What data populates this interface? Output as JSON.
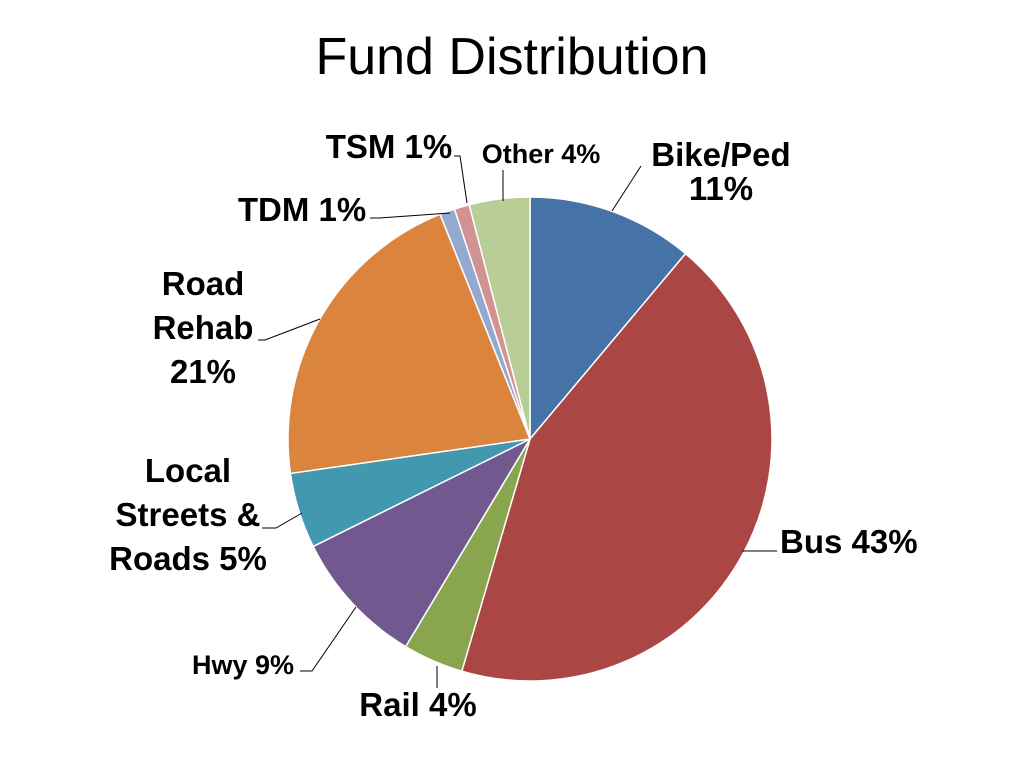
{
  "slide": {
    "title": "Fund Distribution"
  },
  "chart_data": {
    "type": "pie",
    "title": "Fund Distribution",
    "slices": [
      {
        "name": "Bike/Ped",
        "value": 11,
        "color": "#4572A7",
        "label_lines": [
          "Bike/Ped",
          "11%"
        ]
      },
      {
        "name": "Bus",
        "value": 43,
        "color": "#AA4643",
        "label_lines": [
          "Bus 43%"
        ]
      },
      {
        "name": "Rail",
        "value": 4,
        "color": "#89A54E",
        "label_lines": [
          "Rail 4%"
        ]
      },
      {
        "name": "Hwy",
        "value": 9,
        "color": "#71588F",
        "label_lines": [
          "Hwy 9%"
        ]
      },
      {
        "name": "Local Streets & Roads",
        "value": 5,
        "color": "#4198AF",
        "label_lines": [
          "Local",
          "Streets &",
          "Roads 5%"
        ]
      },
      {
        "name": "Road Rehab",
        "value": 21,
        "color": "#DB843D",
        "label_lines": [
          "Road",
          "Rehab",
          "21%"
        ]
      },
      {
        "name": "TDM",
        "value": 1,
        "color": "#93A9CF",
        "label_lines": [
          "TDM 1%"
        ]
      },
      {
        "name": "TSM",
        "value": 1,
        "color": "#D19392",
        "label_lines": [
          "TSM 1%"
        ]
      },
      {
        "name": "Other",
        "value": 4,
        "color": "#B9CD96",
        "label_lines": [
          "Other 4%"
        ]
      }
    ]
  }
}
